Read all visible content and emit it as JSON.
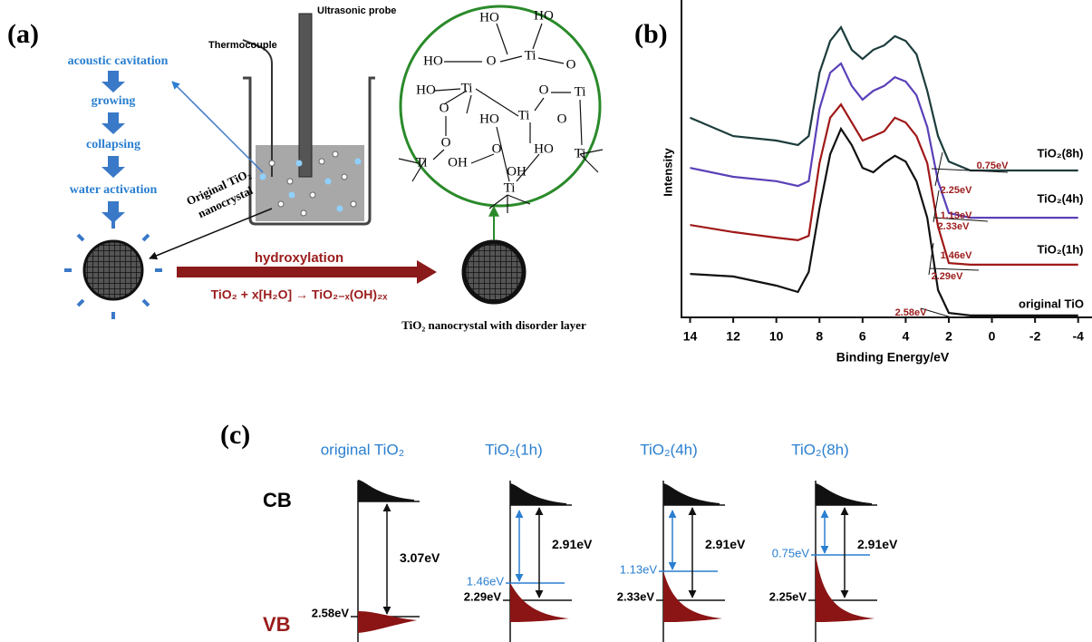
{
  "panel_a": {
    "label": "(a)",
    "steps": [
      "acoustic cavitation",
      "growing",
      "collapsing",
      "water activation"
    ],
    "thermocouple": "Thermocouple",
    "probe": "Ultrasonic probe",
    "nanocrystal": [
      "Original TiO₂",
      "nanocrystal"
    ],
    "process": "hydroxylation",
    "equation": "TiO₂ + x[H₂O] → TiO₂₋ₓ(OH)₂ₓ",
    "product": "TiO₂ nanocrystal with disorder layer",
    "atoms": [
      "HO",
      "HO",
      "HO",
      "O",
      "Ti",
      "O",
      "HO",
      "Ti",
      "O",
      "Ti",
      "O",
      "Ti",
      "HO",
      "O",
      "O",
      "Ti",
      "OH",
      "O",
      "HO",
      "Ti",
      "OH",
      "Ti"
    ]
  },
  "panel_b": {
    "label": "(b)",
    "annotations": [
      "0.75eV",
      "2.25eV",
      "1.13eV",
      "2.33eV",
      "1.46eV",
      "2.29eV",
      "2.58eV"
    ],
    "chart_data": {
      "type": "line",
      "xlabel": "Binding Energy/eV",
      "ylabel": "Intensity",
      "xlim": [
        14.4,
        -4.6
      ],
      "ylim": [
        0,
        100
      ],
      "xticks": [
        14,
        12,
        10,
        8,
        6,
        4,
        2,
        0,
        -2,
        -4
      ],
      "x": [
        14,
        12,
        10,
        9,
        8.5,
        8,
        7.5,
        7,
        6.5,
        6,
        5.5,
        5,
        4.5,
        4,
        3.5,
        3,
        2.5,
        2,
        1,
        0,
        -2,
        -4
      ],
      "series": [
        {
          "name": "TiO₂(8h)",
          "color": "#1c3c3c",
          "values": [
            62.9,
            57.1,
            55.7,
            54.3,
            57.1,
            77.1,
            87.1,
            91.4,
            84.3,
            81.4,
            84.3,
            85.7,
            88.6,
            87.1,
            82.9,
            71.4,
            57.1,
            49.1,
            46.3,
            46.3,
            46.3,
            46.3
          ]
        },
        {
          "name": "TiO₂(4h)",
          "color": "#5a40b8",
          "values": [
            47.1,
            44.3,
            42.9,
            41.4,
            42.9,
            65.7,
            77.1,
            80,
            72.9,
            68.6,
            71.4,
            72.9,
            75.7,
            74.3,
            70,
            60,
            42.9,
            32.9,
            31.4,
            31.4,
            31.4,
            31.4
          ]
        },
        {
          "name": "TiO₂(1h)",
          "color": "#a01818",
          "values": [
            29.1,
            26.9,
            25.1,
            24.3,
            25.7,
            48.6,
            62.9,
            67.1,
            61.4,
            55.7,
            57.1,
            58.6,
            62.9,
            61.4,
            57.1,
            48.6,
            28.6,
            17.1,
            16.6,
            16.6,
            16.6,
            16.6
          ]
        },
        {
          "name": "original TiO",
          "color": "#111111",
          "values": [
            13.7,
            12.9,
            10,
            8,
            14.3,
            34.3,
            51.4,
            59.4,
            54.3,
            47.1,
            45.7,
            48.6,
            50.9,
            49.1,
            42.9,
            31.4,
            8.6,
            1.4,
            0.6,
            0.6,
            0.6,
            0.6
          ]
        }
      ]
    }
  },
  "panel_c": {
    "label": "(c)",
    "cb": "CB",
    "vb": "VB",
    "columns": [
      {
        "title": "original TiO₂",
        "gap": "3.07eV",
        "vb_level": "2.58eV"
      },
      {
        "title": "TiO₂(1h)",
        "gap": "2.91eV",
        "vb_level": "2.29eV",
        "tail": "1.46eV"
      },
      {
        "title": "TiO₂(4h)",
        "gap": "2.91eV",
        "vb_level": "2.33eV",
        "tail": "1.13eV"
      },
      {
        "title": "TiO₂(8h)",
        "gap": "2.91eV",
        "vb_level": "2.25eV",
        "tail": "0.75eV"
      }
    ]
  }
}
